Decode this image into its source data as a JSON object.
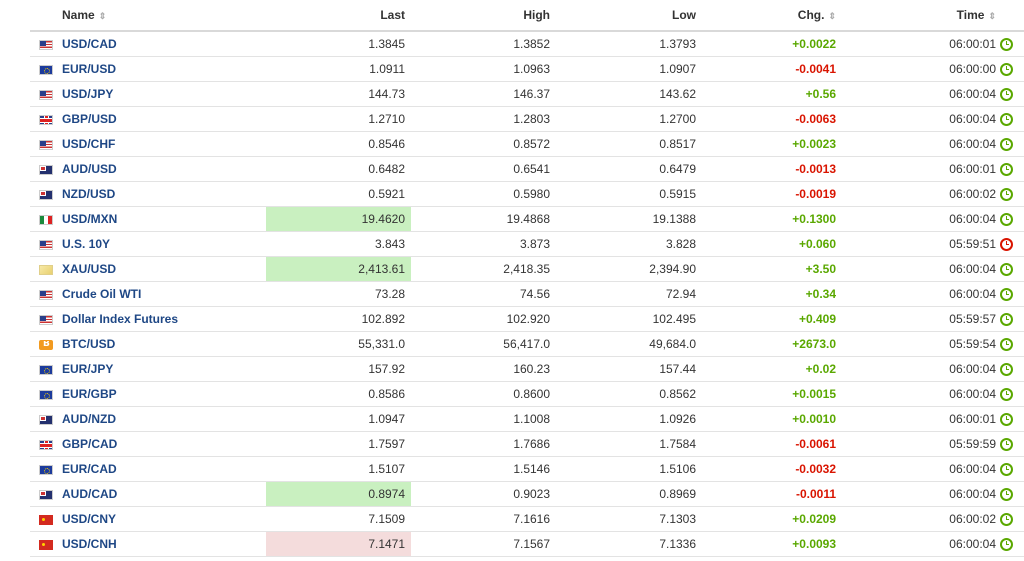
{
  "headers": {
    "name": "Name",
    "last": "Last",
    "high": "High",
    "low": "Low",
    "chg": "Chg.",
    "time": "Time",
    "sort_glyph": "⇕"
  },
  "colors": {
    "positive": "#5aa800",
    "negative": "#d91400",
    "link": "#1e4785",
    "highlight_up": "#c9f0c0",
    "highlight_down": "#f4dcdc"
  },
  "rows": [
    {
      "flag": "us",
      "name": "USD/CAD",
      "last": "1.3845",
      "high": "1.3852",
      "low": "1.3793",
      "chg": "+0.0022",
      "time": "06:00:01",
      "dir": "pos",
      "hl": "",
      "clock": "green"
    },
    {
      "flag": "eu",
      "name": "EUR/USD",
      "last": "1.0911",
      "high": "1.0963",
      "low": "1.0907",
      "chg": "-0.0041",
      "time": "06:00:00",
      "dir": "neg",
      "hl": "",
      "clock": "green"
    },
    {
      "flag": "us",
      "name": "USD/JPY",
      "last": "144.73",
      "high": "146.37",
      "low": "143.62",
      "chg": "+0.56",
      "time": "06:00:04",
      "dir": "pos",
      "hl": "",
      "clock": "green"
    },
    {
      "flag": "gb",
      "name": "GBP/USD",
      "last": "1.2710",
      "high": "1.2803",
      "low": "1.2700",
      "chg": "-0.0063",
      "time": "06:00:04",
      "dir": "neg",
      "hl": "",
      "clock": "green"
    },
    {
      "flag": "us",
      "name": "USD/CHF",
      "last": "0.8546",
      "high": "0.8572",
      "low": "0.8517",
      "chg": "+0.0023",
      "time": "06:00:04",
      "dir": "pos",
      "hl": "",
      "clock": "green"
    },
    {
      "flag": "au",
      "name": "AUD/USD",
      "last": "0.6482",
      "high": "0.6541",
      "low": "0.6479",
      "chg": "-0.0013",
      "time": "06:00:01",
      "dir": "neg",
      "hl": "",
      "clock": "green"
    },
    {
      "flag": "au",
      "name": "NZD/USD",
      "last": "0.5921",
      "high": "0.5980",
      "low": "0.5915",
      "chg": "-0.0019",
      "time": "06:00:02",
      "dir": "neg",
      "hl": "",
      "clock": "green"
    },
    {
      "flag": "mx",
      "name": "USD/MXN",
      "last": "19.4620",
      "high": "19.4868",
      "low": "19.1388",
      "chg": "+0.1300",
      "time": "06:00:04",
      "dir": "pos",
      "hl": "up",
      "clock": "green"
    },
    {
      "flag": "us",
      "name": "U.S. 10Y",
      "last": "3.843",
      "high": "3.873",
      "low": "3.828",
      "chg": "+0.060",
      "time": "05:59:51",
      "dir": "pos",
      "hl": "",
      "clock": "red"
    },
    {
      "flag": "gold",
      "name": "XAU/USD",
      "last": "2,413.61",
      "high": "2,418.35",
      "low": "2,394.90",
      "chg": "+3.50",
      "time": "06:00:04",
      "dir": "pos",
      "hl": "up",
      "clock": "green"
    },
    {
      "flag": "us",
      "name": "Crude Oil WTI",
      "last": "73.28",
      "high": "74.56",
      "low": "72.94",
      "chg": "+0.34",
      "time": "06:00:04",
      "dir": "pos",
      "hl": "",
      "clock": "green"
    },
    {
      "flag": "us",
      "name": "Dollar Index Futures",
      "last": "102.892",
      "high": "102.920",
      "low": "102.495",
      "chg": "+0.409",
      "time": "05:59:57",
      "dir": "pos",
      "hl": "",
      "clock": "green"
    },
    {
      "flag": "btc",
      "name": "BTC/USD",
      "last": "55,331.0",
      "high": "56,417.0",
      "low": "49,684.0",
      "chg": "+2673.0",
      "time": "05:59:54",
      "dir": "pos",
      "hl": "",
      "clock": "green"
    },
    {
      "flag": "eu",
      "name": "EUR/JPY",
      "last": "157.92",
      "high": "160.23",
      "low": "157.44",
      "chg": "+0.02",
      "time": "06:00:04",
      "dir": "pos",
      "hl": "",
      "clock": "green"
    },
    {
      "flag": "eu",
      "name": "EUR/GBP",
      "last": "0.8586",
      "high": "0.8600",
      "low": "0.8562",
      "chg": "+0.0015",
      "time": "06:00:04",
      "dir": "pos",
      "hl": "",
      "clock": "green"
    },
    {
      "flag": "au",
      "name": "AUD/NZD",
      "last": "1.0947",
      "high": "1.1008",
      "low": "1.0926",
      "chg": "+0.0010",
      "time": "06:00:01",
      "dir": "pos",
      "hl": "",
      "clock": "green"
    },
    {
      "flag": "gb",
      "name": "GBP/CAD",
      "last": "1.7597",
      "high": "1.7686",
      "low": "1.7584",
      "chg": "-0.0061",
      "time": "05:59:59",
      "dir": "neg",
      "hl": "",
      "clock": "green"
    },
    {
      "flag": "eu",
      "name": "EUR/CAD",
      "last": "1.5107",
      "high": "1.5146",
      "low": "1.5106",
      "chg": "-0.0032",
      "time": "06:00:04",
      "dir": "neg",
      "hl": "",
      "clock": "green"
    },
    {
      "flag": "au",
      "name": "AUD/CAD",
      "last": "0.8974",
      "high": "0.9023",
      "low": "0.8969",
      "chg": "-0.0011",
      "time": "06:00:04",
      "dir": "neg",
      "hl": "up",
      "clock": "green"
    },
    {
      "flag": "cn",
      "name": "USD/CNY",
      "last": "7.1509",
      "high": "7.1616",
      "low": "7.1303",
      "chg": "+0.0209",
      "time": "06:00:02",
      "dir": "pos",
      "hl": "",
      "clock": "green"
    },
    {
      "flag": "cn",
      "name": "USD/CNH",
      "last": "7.1471",
      "high": "7.1567",
      "low": "7.1336",
      "chg": "+0.0093",
      "time": "06:00:04",
      "dir": "pos",
      "hl": "down",
      "clock": "green"
    }
  ]
}
